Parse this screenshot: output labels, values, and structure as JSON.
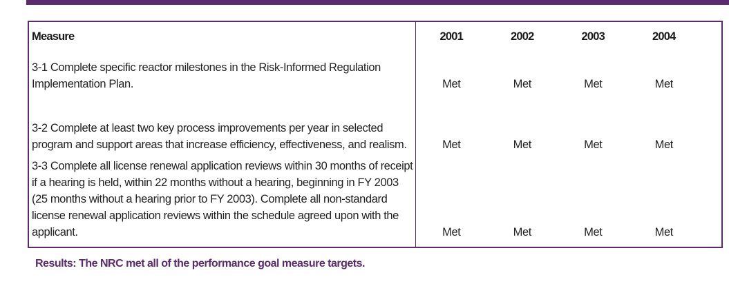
{
  "table": {
    "headers": {
      "measure": "Measure",
      "years": [
        "2001",
        "2002",
        "2003",
        "2004"
      ]
    },
    "rows": [
      {
        "measure": "3-1 Complete specific reactor milestones in the Risk-Informed Regulation Implementation Plan.",
        "values": [
          "Met",
          "Met",
          "Met",
          "Met"
        ]
      },
      {
        "measure": "3-2 Complete at least two key process improvements per year in selected program and support areas that increase efficiency, effectiveness, and realism.",
        "values": [
          "Met",
          "Met",
          "Met",
          "Met"
        ]
      },
      {
        "measure": "3-3 Complete all license renewal application reviews within 30 months of receipt if a hearing is held, within 22 months without a hearing, beginning in FY 2003 (25 months without a hearing prior to FY 2003).  Complete all non-standard license renewal application reviews within the schedule agreed upon with the applicant.",
        "values": [
          "Met",
          "Met",
          "Met",
          "Met"
        ]
      }
    ]
  },
  "results": "Results:  The NRC met all of the performance goal measure targets.",
  "colors": {
    "accent": "#5b2a6e",
    "text": "#222222"
  }
}
